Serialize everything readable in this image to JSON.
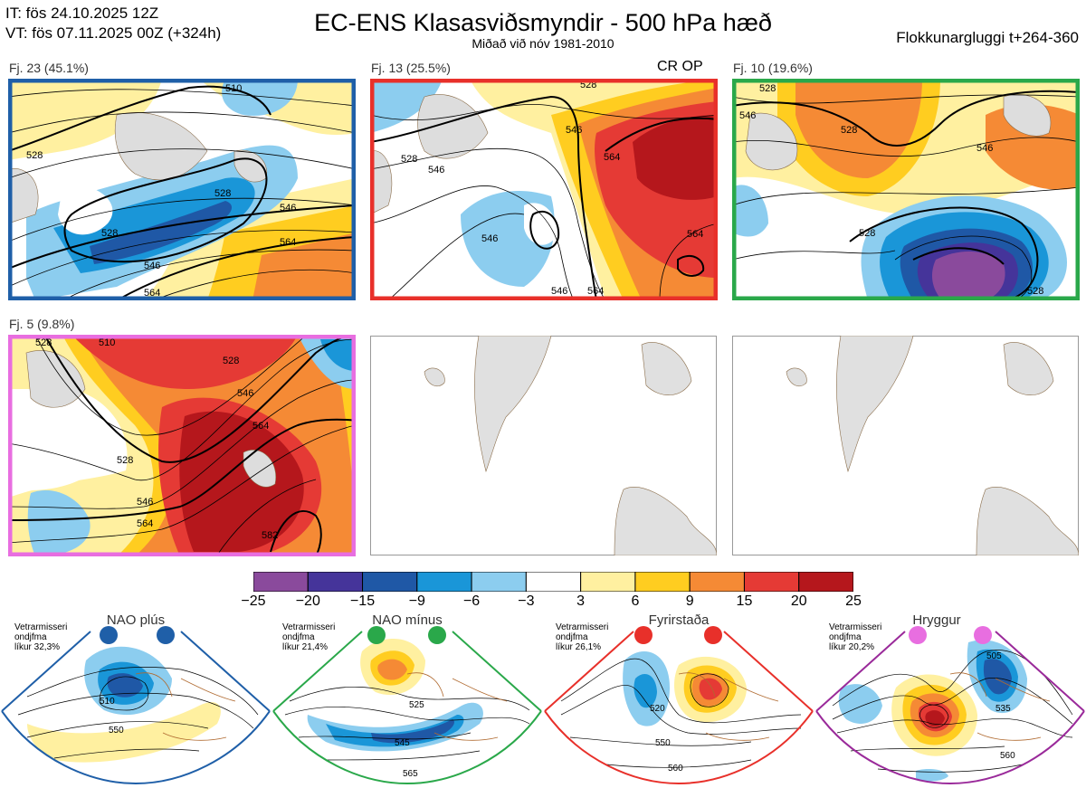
{
  "header": {
    "it_line": "IT: fös 24.10.2025 12Z",
    "vt_line": "VT: fös 07.11.2025 00Z  (+324h)",
    "title": "EC-ENS Klasasviðsmyndir - 500 hPa hæð",
    "subtitle": "Miðað við nóv 1981-2010",
    "window": "Flokkunargluggi t+264-360"
  },
  "panels": [
    {
      "label": "Fj. 23 (45.1%)",
      "border_color": "#1f5fa8",
      "contour_labels": [
        "510",
        "528",
        "528",
        "528",
        "546",
        "546",
        "564",
        "564"
      ]
    },
    {
      "label": "Fj. 13 (25.5%)",
      "border_color": "#e8302a",
      "tag": "CR OP",
      "contour_labels": [
        "528",
        "546",
        "546",
        "528",
        "546",
        "564",
        "564",
        "546",
        "564"
      ]
    },
    {
      "label": "Fj. 10 (19.6%)",
      "border_color": "#2aa84a",
      "contour_labels": [
        "528",
        "546",
        "528",
        "546",
        "528",
        "528"
      ]
    },
    {
      "label": "Fj. 5 (9.8%)",
      "border_color": "#e86ee0",
      "contour_labels": [
        "510",
        "528",
        "528",
        "528",
        "546",
        "564",
        "546",
        "564",
        "582"
      ]
    }
  ],
  "chart_data": {
    "type": "heatmap",
    "title": "EC-ENS Klasasviðsmyndir - 500 hPa hæð",
    "colorbar": {
      "ticks": [
        "−25",
        "−20",
        "−15",
        "−9",
        "−6",
        "−3",
        "3",
        "6",
        "9",
        "15",
        "20",
        "25"
      ],
      "colors": [
        "#8a4a9c",
        "#45349a",
        "#1f58a6",
        "#1a96d8",
        "#8ccdef",
        "#ffffff",
        "#fff0a0",
        "#ffcd20",
        "#f58a35",
        "#e53a35",
        "#b5171c"
      ]
    },
    "clusters": [
      {
        "name": "Fj. 23",
        "probability_percent": 45.1
      },
      {
        "name": "Fj. 13",
        "probability_percent": 25.5
      },
      {
        "name": "Fj. 10",
        "probability_percent": 19.6
      },
      {
        "name": "Fj. 5",
        "probability_percent": 9.8
      }
    ]
  },
  "regimes": [
    {
      "name": "NAO plús",
      "note": [
        "Vetrarmisseri",
        "ondjfma",
        "líkur 32,3%"
      ],
      "color": "#1f5fa8",
      "labels": [
        "510",
        "550"
      ]
    },
    {
      "name": "NAO mínus",
      "note": [
        "Vetrarmisseri",
        "ondjfma",
        "líkur 21,4%"
      ],
      "color": "#2aa84a",
      "labels": [
        "525",
        "545",
        "565"
      ]
    },
    {
      "name": "Fyrirstaða",
      "note": [
        "Vetrarmisseri",
        "ondjfma",
        "líkur 26,1%"
      ],
      "color": "#e8302a",
      "labels": [
        "520",
        "550",
        "560"
      ]
    },
    {
      "name": "Hryggur",
      "note": [
        "Vetrarmisseri",
        "ondjfma",
        "líkur 20,2%"
      ],
      "color": "#9a2a9a",
      "dot_color": "#e86ee0",
      "labels": [
        "505",
        "535",
        "560"
      ]
    }
  ]
}
